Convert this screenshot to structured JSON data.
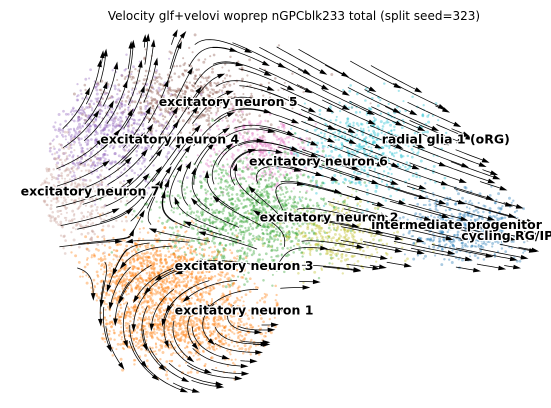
{
  "chart_data": {
    "type": "scatter",
    "subtype": "umap-velocity-stream",
    "title": "Velocity glf+velovi woprep nGPCblk233 total (split seed=323)",
    "xlabel": "",
    "ylabel": "",
    "axes_visible": false,
    "grid": false,
    "legend": "on-data labels",
    "clusters": [
      {
        "name": "excitatory neuron 5",
        "color": "#8c564b",
        "label_xy": [
          0.28,
          0.79
        ],
        "center": [
          0.33,
          0.81
        ],
        "spread": [
          0.16,
          0.09
        ],
        "n": 620
      },
      {
        "name": "radial glia 1 (oRG)",
        "color": "#17becf",
        "label_xy": [
          0.7,
          0.69
        ],
        "center": [
          0.67,
          0.68
        ],
        "spread": [
          0.12,
          0.12
        ],
        "n": 560
      },
      {
        "name": "excitatory neuron 4",
        "color": "#9467bd",
        "label_xy": [
          0.17,
          0.69
        ],
        "center": [
          0.18,
          0.72
        ],
        "spread": [
          0.12,
          0.13
        ],
        "n": 720
      },
      {
        "name": "excitatory neuron 6",
        "color": "#e377c2",
        "label_xy": [
          0.45,
          0.63
        ],
        "center": [
          0.47,
          0.67
        ],
        "spread": [
          0.09,
          0.09
        ],
        "n": 380
      },
      {
        "name": "excitatory neuron 7",
        "color": "#c49c94",
        "label_xy": [
          0.02,
          0.55
        ],
        "center": [
          0.1,
          0.55
        ],
        "spread": [
          0.1,
          0.12
        ],
        "n": 360
      },
      {
        "name": "excitatory neuron 2",
        "color": "#2ca02c",
        "label_xy": [
          0.47,
          0.48
        ],
        "center": [
          0.45,
          0.5
        ],
        "spread": [
          0.14,
          0.13
        ],
        "n": 1150
      },
      {
        "name": "intermediate progenitor",
        "color": "#bcbd22",
        "label_xy": [
          0.68,
          0.46
        ],
        "center": [
          0.62,
          0.44
        ],
        "spread": [
          0.1,
          0.08
        ],
        "n": 380
      },
      {
        "name": "cycling RG/IPC",
        "color": "#1f77b4",
        "label_xy": [
          0.85,
          0.43
        ],
        "center": [
          0.86,
          0.46
        ],
        "spread": [
          0.1,
          0.08
        ],
        "n": 520
      },
      {
        "name": "excitatory neuron 3",
        "color": "#ff7f0e",
        "label_xy": [
          0.31,
          0.35
        ],
        "center": [
          0.28,
          0.34
        ],
        "spread": [
          0.14,
          0.09
        ],
        "n": 1050
      },
      {
        "name": "excitatory neuron 1",
        "color": "#ff7f0e",
        "label_xy": [
          0.31,
          0.23
        ],
        "center": [
          0.32,
          0.2
        ],
        "spread": [
          0.16,
          0.09
        ],
        "n": 1050
      }
    ]
  }
}
